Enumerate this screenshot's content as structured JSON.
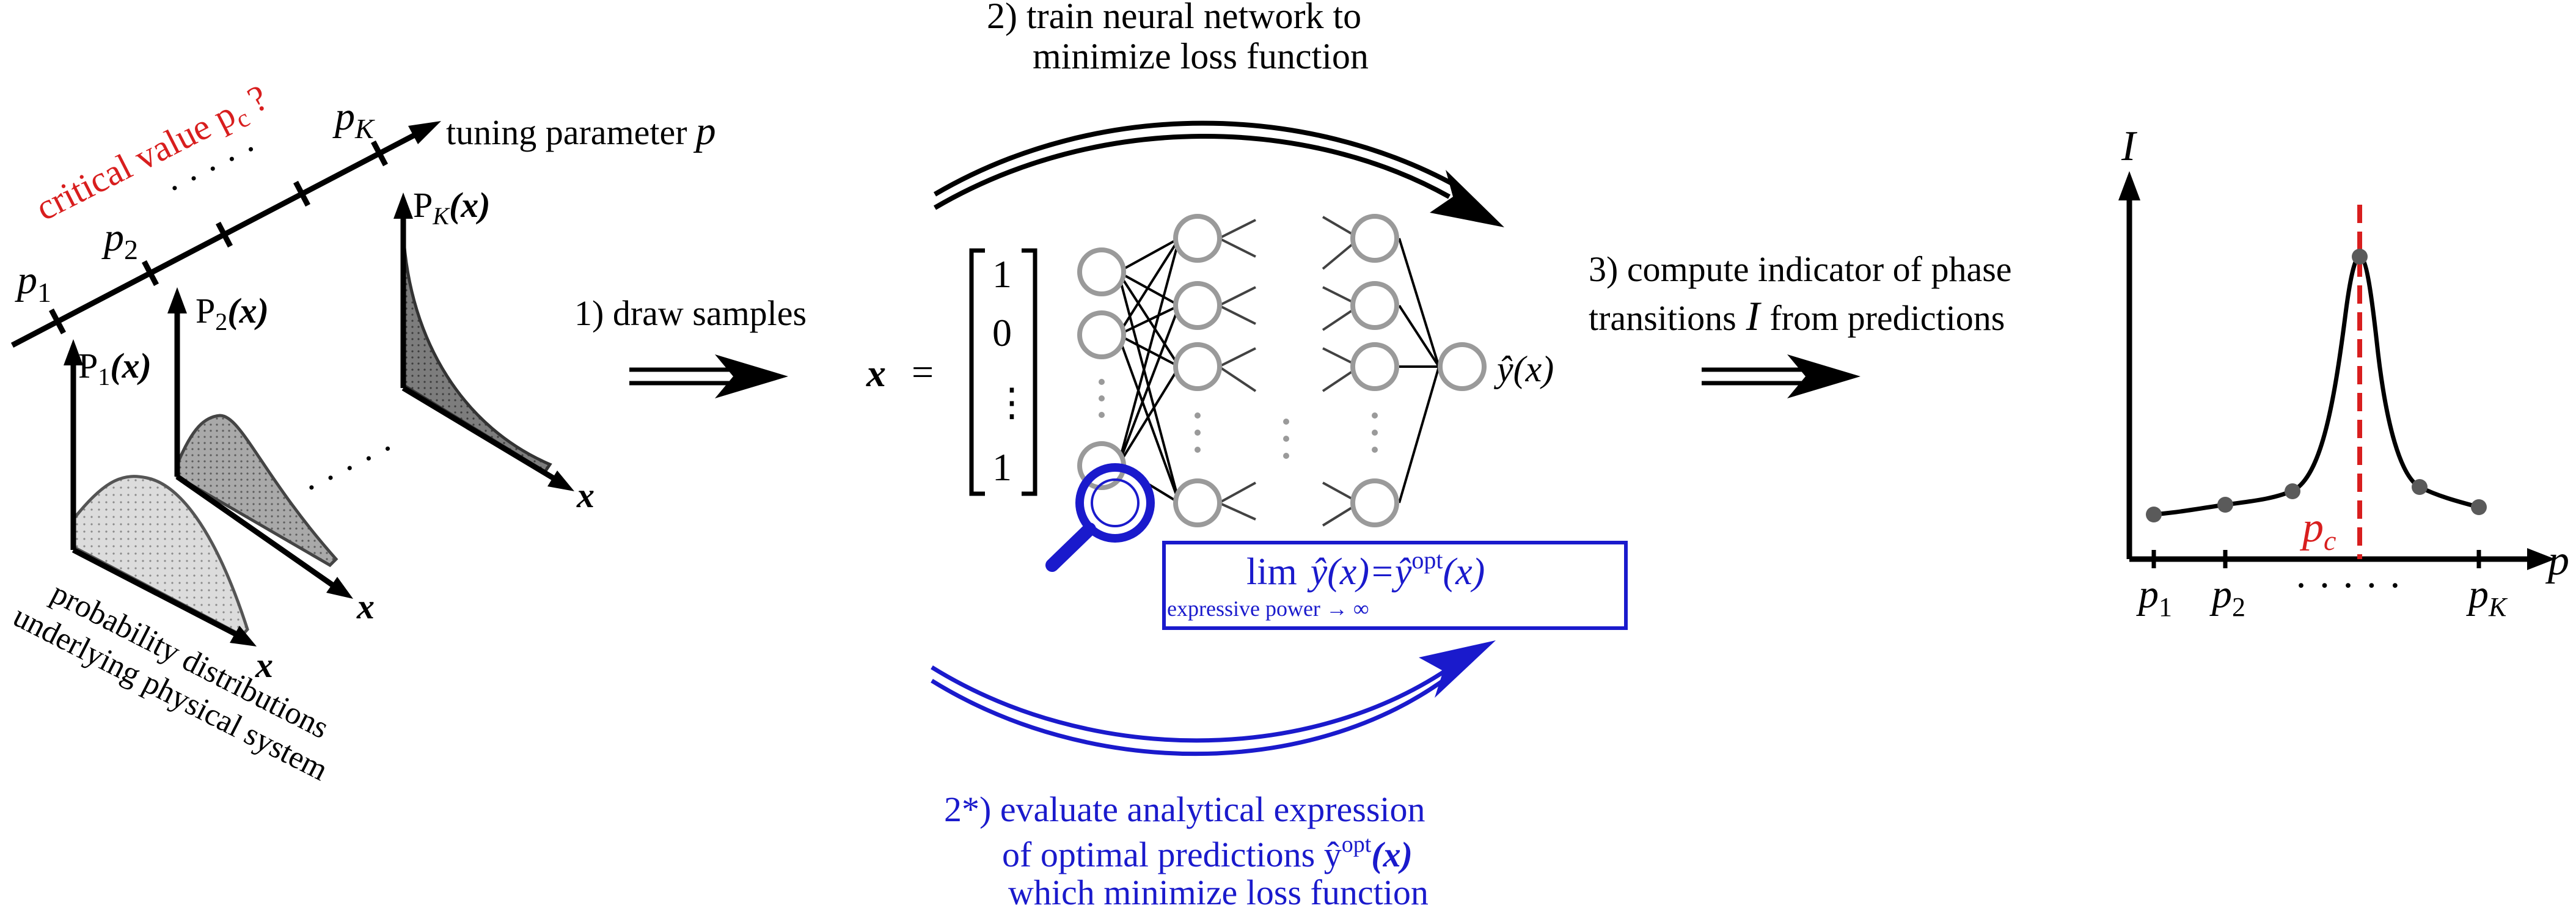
{
  "colors": {
    "ink": "#000000",
    "accent_red": "#d81e1e",
    "accent_blue": "#1a1acc",
    "neuron_gray": "#9a9a9a",
    "dist_fill_light": "#d4d4d4",
    "dist_fill_mid": "#a8a8a8",
    "dist_fill_dark": "#7a7a7a",
    "point_gray": "#5a5a5a"
  },
  "left_panel": {
    "critical_label": "critical value p",
    "critical_sub": "c",
    "critical_q": "?",
    "p1": "p",
    "p1_sub": "1",
    "p2": "p",
    "p2_sub": "2",
    "pK": "p",
    "pK_sub": "K",
    "dots": "· · · · ·",
    "tuning_label": "tuning parameter",
    "tuning_var": "p",
    "P1": "P",
    "P1_sub": "1",
    "P1_arg": "(x)",
    "P2": "P",
    "P2_sub": "2",
    "P2_arg": "(x)",
    "PK": "P",
    "PK_sub": "K",
    "PK_arg": "(x)",
    "x_label": "x",
    "between_dots": "· · · · ·",
    "caption_line1": "probability distributions",
    "caption_line2": "underlying physical system"
  },
  "step1": {
    "label": "1) draw samples"
  },
  "step2": {
    "line1": "2) train neural network to",
    "line2": "minimize loss function"
  },
  "network": {
    "x_var": "x",
    "equals": "=",
    "vector": [
      "1",
      "0",
      "⋮",
      "1"
    ],
    "output": "ŷ(x)",
    "lim_word": "lim",
    "lim_expr": "ŷ(x)=ŷ",
    "lim_sup": "opt",
    "lim_arg": "(x)",
    "lim_sub": "expressive power → ∞"
  },
  "step2star": {
    "line1": "2*) evaluate analytical expression",
    "line2a": "of optimal predictions ŷ",
    "line2_sup": "opt",
    "line2b": "(x)",
    "line3": "which minimize loss function"
  },
  "step3": {
    "line1": "3) compute indicator of phase",
    "line2a": "transitions",
    "line2_var": "I",
    "line2b": "from predictions"
  },
  "right_plot": {
    "y_axis": "I",
    "x_axis": "p",
    "pc": "p",
    "pc_sub": "c",
    "tick_p1": "p",
    "tick_p1_sub": "1",
    "tick_p2": "p",
    "tick_p2_sub": "2",
    "tick_pK": "p",
    "tick_pK_sub": "K",
    "dots": "· · · · ·"
  }
}
